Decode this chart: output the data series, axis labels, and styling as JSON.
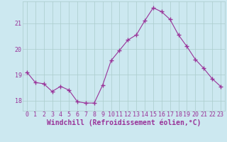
{
  "x": [
    0,
    1,
    2,
    3,
    4,
    5,
    6,
    7,
    8,
    9,
    10,
    11,
    12,
    13,
    14,
    15,
    16,
    17,
    18,
    19,
    20,
    21,
    22,
    23
  ],
  "y": [
    19.1,
    18.7,
    18.65,
    18.35,
    18.55,
    18.4,
    17.95,
    17.9,
    17.9,
    18.6,
    19.55,
    19.95,
    20.35,
    20.55,
    21.1,
    21.6,
    21.45,
    21.15,
    20.55,
    20.1,
    19.6,
    19.25,
    18.85,
    18.55
  ],
  "line_color": "#993399",
  "marker": "+",
  "marker_size": 4,
  "bg_color": "#cce8f0",
  "grid_color": "#aacccc",
  "tick_color": "#993399",
  "label_color": "#993399",
  "xlabel": "Windchill (Refroidissement éolien,°C)",
  "xlim": [
    -0.5,
    23.5
  ],
  "ylim": [
    17.6,
    21.85
  ],
  "yticks": [
    18,
    19,
    20,
    21
  ],
  "xticks": [
    0,
    1,
    2,
    3,
    4,
    5,
    6,
    7,
    8,
    9,
    10,
    11,
    12,
    13,
    14,
    15,
    16,
    17,
    18,
    19,
    20,
    21,
    22,
    23
  ],
  "tick_fontsize": 6,
  "xlabel_fontsize": 7,
  "linewidth": 0.8,
  "marker_linewidth": 1.0
}
